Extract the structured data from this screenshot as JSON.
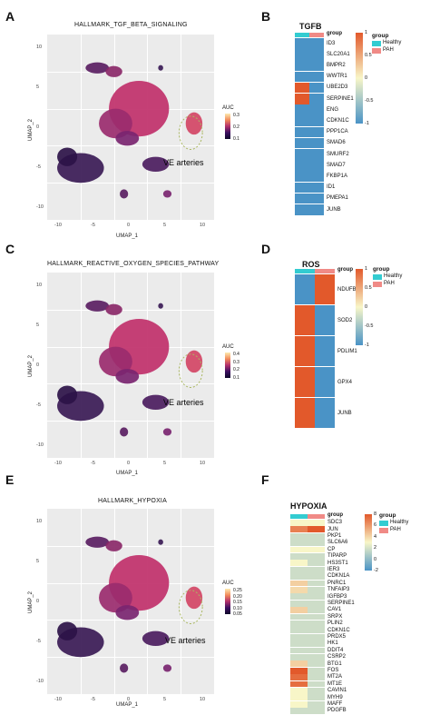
{
  "panels": {
    "A": {
      "letter": "A",
      "title": "HALLMARK_TGF_BETA_SIGNALING",
      "xlabel": "UMAP_1",
      "ylabel": "UMAP_2",
      "annotation": "VE arteries",
      "xticks": [
        "-10",
        "-5",
        "0",
        "5",
        "10"
      ],
      "yticks": [
        "10",
        "5",
        "0",
        "-5",
        "-10"
      ],
      "legend_title": "AUC",
      "legend_ticks": [
        "0.3",
        "0.2",
        "0.1"
      ]
    },
    "C": {
      "letter": "C",
      "title": "HALLMARK_REACTIVE_OXYGEN_SPECIES_PATHWAY",
      "xlabel": "UMAP_1",
      "ylabel": "UMAP_2",
      "annotation": "VE arteries",
      "xticks": [
        "-10",
        "-5",
        "0",
        "5",
        "10"
      ],
      "yticks": [
        "10",
        "5",
        "0",
        "-5",
        "-10"
      ],
      "legend_title": "AUC",
      "legend_ticks": [
        "0.4",
        "0.3",
        "0.2",
        "0.1"
      ]
    },
    "E": {
      "letter": "E",
      "title": "HALLMARK_HYPOXIA",
      "xlabel": "UMAP_1",
      "ylabel": "UMAP_2",
      "annotation": "VE arteries",
      "xticks": [
        "-10",
        "-5",
        "0",
        "5",
        "10"
      ],
      "yticks": [
        "10",
        "5",
        "0",
        "-5",
        "-10"
      ],
      "legend_title": "AUC",
      "legend_ticks": [
        "0.25",
        "0.20",
        "0.15",
        "0.10",
        "0.05"
      ]
    },
    "B": {
      "letter": "B",
      "title": "TGFB",
      "group_header": "group",
      "legend_title": "group",
      "legend": [
        "Healthy",
        "PAH"
      ],
      "cbar_ticks": [
        "1",
        "0.5",
        "0",
        "-0.5",
        "-1"
      ],
      "genes": [
        "ID3",
        "SLC20A1",
        "BMPR2",
        "WWTR1",
        "UBE2D3",
        "SERPINE1",
        "ENG",
        "CDKN1C",
        "PPP1CA",
        "SMAD6",
        "SMURF2",
        "SMAD7",
        "FKBP1A",
        "ID1",
        "PMEPA1",
        "JUNB"
      ],
      "healthy": [
        -1,
        -1,
        -1,
        -1,
        1,
        1,
        -1,
        -1,
        -1,
        -1,
        -1,
        -1,
        -1,
        -1,
        -1,
        -1
      ],
      "pah": [
        -1,
        -1,
        -1,
        -1,
        -1,
        -1,
        -1,
        -1,
        -1,
        -1,
        -1,
        -1,
        -1,
        -1,
        -1,
        -1
      ]
    },
    "D": {
      "letter": "D",
      "title": "ROS",
      "group_header": "group",
      "legend_title": "group",
      "legend": [
        "Healthy",
        "PAH"
      ],
      "cbar_ticks": [
        "1",
        "0.5",
        "0",
        "-0.5",
        "-1"
      ],
      "genes": [
        "NDUFB4",
        "SOD2",
        "PDLIM1",
        "GPX4",
        "JUNB"
      ],
      "healthy": [
        -1,
        1,
        1,
        1,
        1
      ],
      "pah": [
        1,
        -1,
        -1,
        -1,
        -1
      ]
    },
    "F": {
      "letter": "F",
      "title": "HYPOXIA",
      "group_header": "group",
      "legend_title": "group",
      "legend": [
        "Healthy",
        "PAH"
      ],
      "cbar_ticks": [
        "8",
        "6",
        "4",
        "2",
        "0",
        "-2"
      ],
      "genes": [
        "SDC3",
        "JUN",
        "PKP1",
        "SLC6A6",
        "CP",
        "TIPARP",
        "HS3ST1",
        "IER3",
        "CDKN1A",
        "PNRC1",
        "TNFAIP3",
        "IGFBP3",
        "SERPINE1",
        "CAV1",
        "SRPX",
        "PLIN2",
        "CDKN1C",
        "PRDX5",
        "HK1",
        "DDIT4",
        "CSRP2",
        "BTG1",
        "FOS",
        "MT2A",
        "MT1E",
        "CAVIN1",
        "MYH9",
        "MAFF",
        "PDGFB"
      ],
      "healthy": [
        0,
        6,
        -0.5,
        -0.5,
        0,
        -0.5,
        0,
        -0.5,
        -0.5,
        2,
        1.5,
        -0.5,
        -0.5,
        2,
        -0.5,
        -0.5,
        -0.5,
        -0.5,
        -0.5,
        -0.5,
        -0.5,
        2,
        8,
        7,
        7,
        0,
        0,
        0,
        -0.5
      ],
      "pah": [
        0,
        8,
        -0.5,
        -0.5,
        0,
        -0.5,
        -0.5,
        -0.5,
        -0.5,
        -0.5,
        -0.5,
        -0.5,
        -0.5,
        -0.5,
        -0.5,
        -0.5,
        -0.5,
        -0.5,
        -0.5,
        -0.5,
        -0.5,
        -0.5,
        -0.5,
        -0.5,
        -0.5,
        -0.5,
        -0.5,
        -0.5,
        -0.5
      ]
    }
  },
  "colors": {
    "healthy": "#33ccd1",
    "pah": "#f08a86",
    "low": "#4a93c6",
    "high": "#e2592b",
    "mid": "#f8f6c8"
  }
}
